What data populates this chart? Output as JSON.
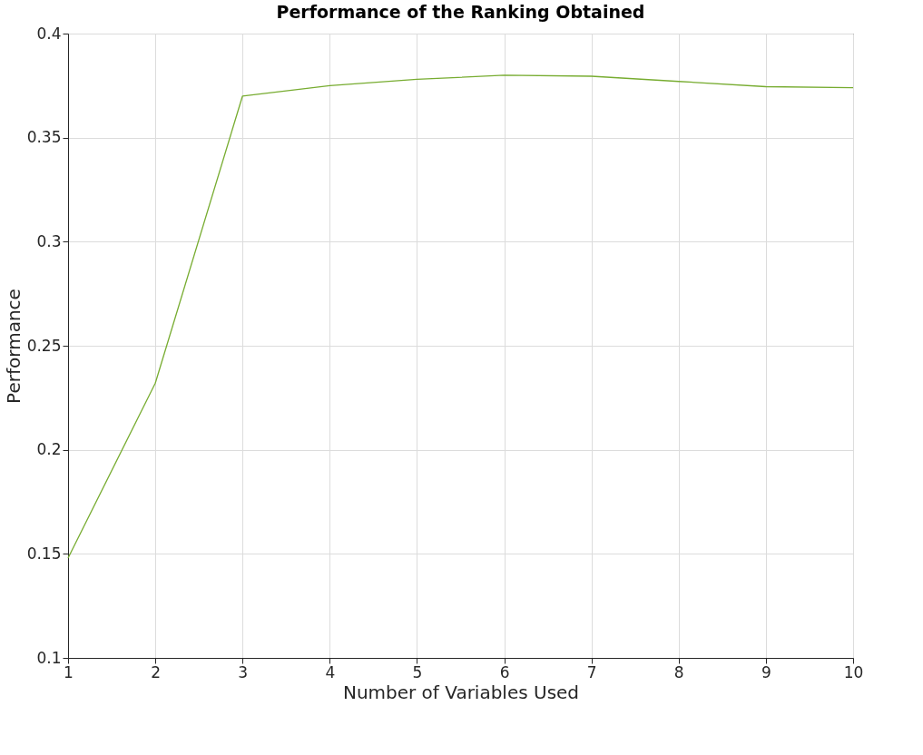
{
  "chart_data": {
    "type": "line",
    "title": "Performance of the Ranking Obtained",
    "xlabel": "Number of Variables Used",
    "ylabel": "Performance",
    "x": [
      1,
      2,
      3,
      4,
      5,
      6,
      7,
      8,
      9,
      10
    ],
    "series": [
      {
        "color": "#77ac30",
        "values": [
          0.148,
          0.232,
          0.37,
          0.375,
          0.378,
          0.38,
          0.3795,
          0.377,
          0.3745,
          0.374
        ]
      }
    ],
    "xlim": [
      1,
      10
    ],
    "xticks": [
      1,
      2,
      3,
      4,
      5,
      6,
      7,
      8,
      9,
      10
    ],
    "ylim": [
      0.1,
      0.4
    ],
    "yticks": [
      0.1,
      0.15,
      0.2,
      0.25,
      0.3,
      0.35,
      0.4
    ],
    "grid": true,
    "legend": false,
    "marker": "none",
    "line_style": "solid"
  }
}
